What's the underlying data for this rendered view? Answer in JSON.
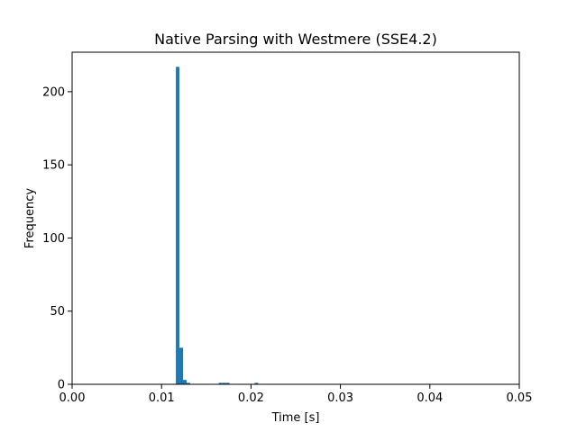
{
  "chart_data": {
    "type": "bar",
    "title": "Native Parsing with Westmere (SSE4.2)",
    "xlabel": "Time [s]",
    "ylabel": "Frequency",
    "xlim": [
      0,
      0.05
    ],
    "ylim": [
      0,
      227
    ],
    "xticks": [
      0,
      0.01,
      0.02,
      0.03,
      0.04,
      0.05
    ],
    "xtick_labels": [
      "0.00",
      "0.01",
      "0.02",
      "0.03",
      "0.04",
      "0.05"
    ],
    "yticks": [
      0,
      50,
      100,
      150,
      200
    ],
    "ytick_labels": [
      "0",
      "50",
      "100",
      "150",
      "200"
    ],
    "grid": false,
    "bar_color": "#1f77b4",
    "bin_width": 0.0004,
    "bins": [
      {
        "x0": 0.0116,
        "count": 217
      },
      {
        "x0": 0.012,
        "count": 25
      },
      {
        "x0": 0.0124,
        "count": 3
      },
      {
        "x0": 0.0128,
        "count": 1
      },
      {
        "x0": 0.0164,
        "count": 1
      },
      {
        "x0": 0.0168,
        "count": 1
      },
      {
        "x0": 0.0172,
        "count": 1
      },
      {
        "x0": 0.0204,
        "count": 1
      }
    ]
  }
}
